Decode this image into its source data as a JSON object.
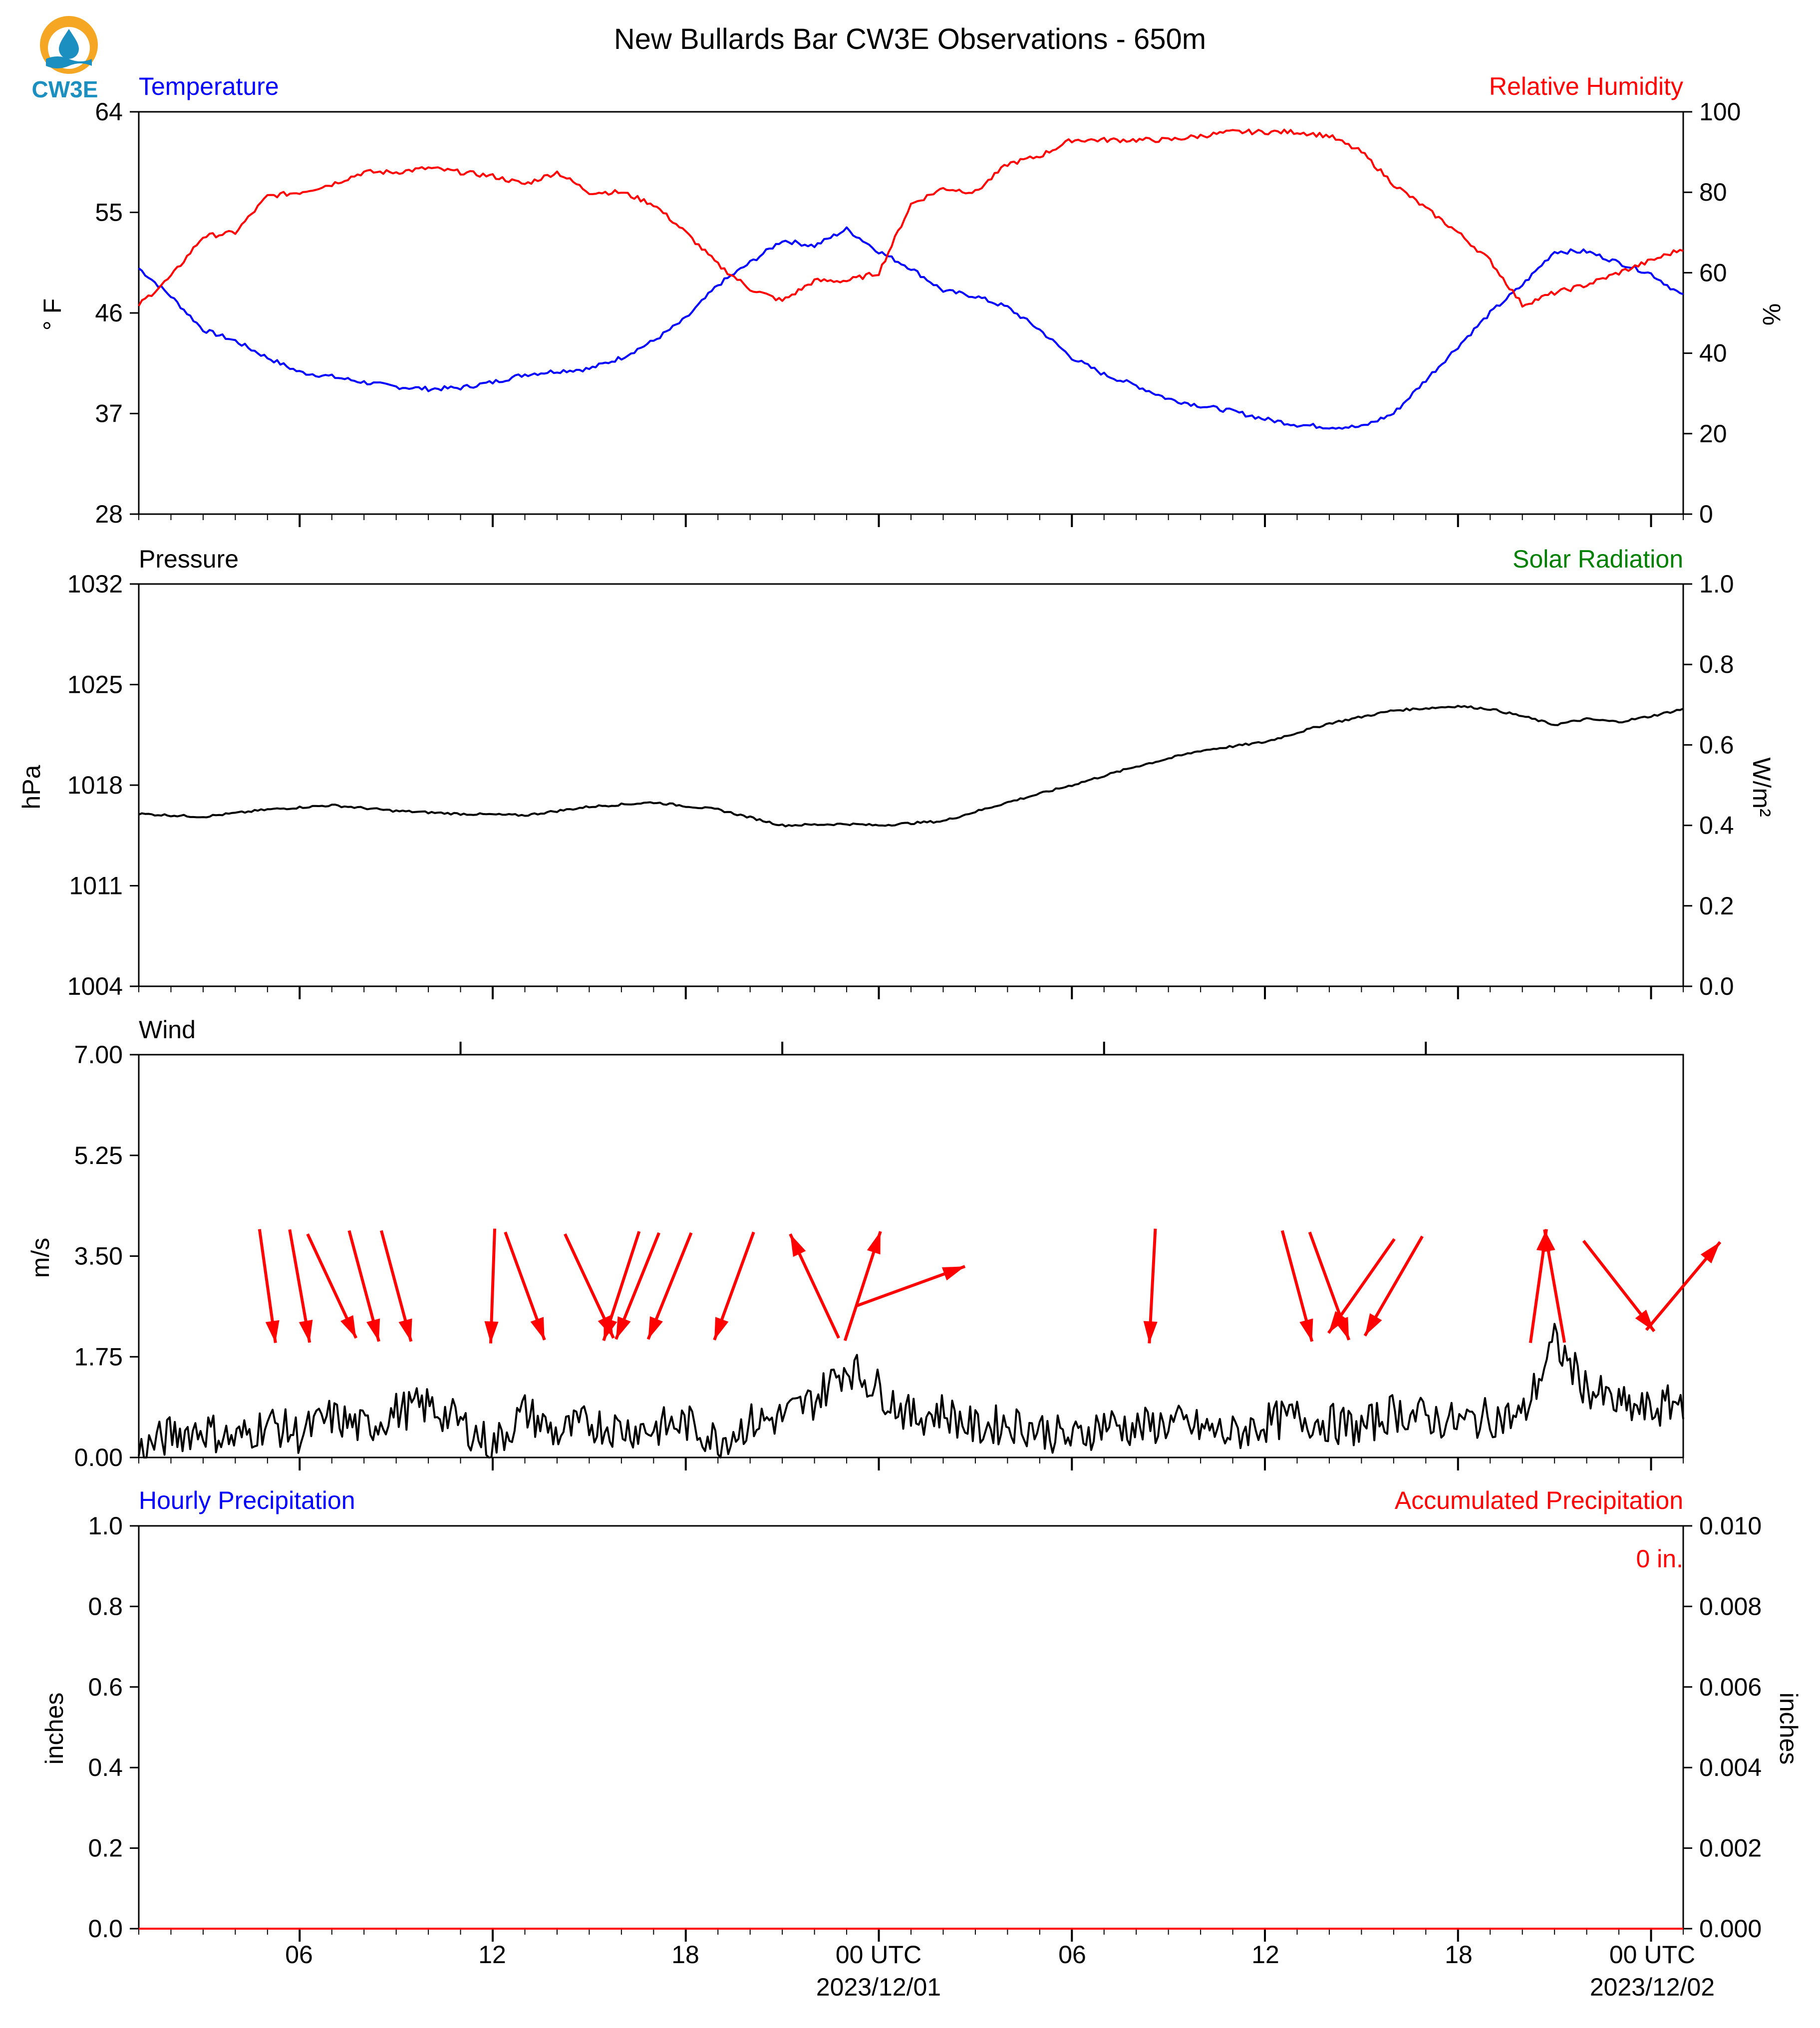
{
  "title": "New Bullards Bar CW3E Observations - 650m",
  "logo": {
    "text": "CW3E",
    "colors": {
      "ring": "#f5a623",
      "water": "#1b8fbf"
    }
  },
  "colors": {
    "temperature": "#0000ff",
    "humidity": "#ff0000",
    "pressure": "#000000",
    "solar": "#008000",
    "wind": "#000000",
    "arrows": "#ff0000",
    "hourly_precip": "#0000ff",
    "accum_precip": "#ff0000"
  },
  "x_axis": {
    "ticks_major": [
      "06",
      "12",
      "18",
      "00 UTC",
      "06",
      "12",
      "18",
      "00 UTC"
    ],
    "date_labels": [
      "2023/12/01",
      "2023/12/02"
    ],
    "range_hours": [
      -23.0,
      25.0
    ]
  },
  "panels": {
    "temp_rh": {
      "left_label": "Temperature",
      "right_label": "Relative Humidity",
      "left_unit": "° F",
      "right_unit": "%"
    },
    "pressure": {
      "left_label": "Pressure",
      "right_label": "Solar Radiation",
      "left_unit": "hPa",
      "right_unit": "W/m²"
    },
    "wind": {
      "left_label": "Wind",
      "left_unit": "m/s"
    },
    "precip": {
      "left_label": "Hourly Precipitation",
      "right_label": "Accumulated Precipitation",
      "left_unit": "inches",
      "right_unit": "inches",
      "total_label": "0 in."
    }
  },
  "chart_data": [
    {
      "type": "line",
      "title": "Temperature / Relative Humidity",
      "x_unit": "hours relative to 2023/12/01 00 UTC",
      "ylim_left": [
        28,
        64
      ],
      "yticks_left": [
        28,
        37,
        46,
        55,
        64
      ],
      "ylim_right": [
        0,
        100
      ],
      "yticks_right": [
        0,
        20,
        40,
        60,
        80,
        100
      ],
      "series": [
        {
          "name": "Temperature",
          "axis": "left",
          "x": [
            -23,
            -22,
            -21,
            -20,
            -19,
            -18,
            -17,
            -16,
            -15,
            -14,
            -13,
            -12,
            -11,
            -10,
            -9,
            -8,
            -7,
            -6,
            -5,
            -4,
            -3,
            -2,
            -1,
            0,
            1,
            2,
            3,
            4,
            5,
            6,
            7,
            8,
            9,
            10,
            11,
            12,
            13,
            14,
            15,
            16,
            17,
            18,
            19,
            20,
            21,
            22,
            23,
            24,
            25
          ],
          "y": [
            50.0,
            47.5,
            44.5,
            43.5,
            42.0,
            40.7,
            40.3,
            39.8,
            39.4,
            39.2,
            39.3,
            39.8,
            40.5,
            40.8,
            41.0,
            42.0,
            43.5,
            45.5,
            48.5,
            50.5,
            52.5,
            52.0,
            53.5,
            51.5,
            50.0,
            48.0,
            47.5,
            46.5,
            44.5,
            42.0,
            40.5,
            39.5,
            38.3,
            37.7,
            37.2,
            36.5,
            36.0,
            35.8,
            35.8,
            37.0,
            40.0,
            43.0,
            46.0,
            48.5,
            51.5,
            51.5,
            50.5,
            49.5,
            47.5
          ]
        },
        {
          "name": "Relative Humidity",
          "axis": "right",
          "x": [
            -23,
            -22,
            -21,
            -20,
            -19,
            -18,
            -17,
            -16,
            -15,
            -14,
            -13,
            -12,
            -11,
            -10,
            -9,
            -8,
            -7,
            -6,
            -5,
            -4,
            -3,
            -2,
            -1,
            0,
            1,
            2,
            3,
            4,
            5,
            6,
            7,
            8,
            9,
            10,
            11,
            12,
            13,
            14,
            15,
            16,
            17,
            18,
            19,
            20,
            21,
            22,
            23,
            24,
            25
          ],
          "y": [
            52,
            59,
            69,
            70,
            79,
            80,
            82,
            85,
            85,
            86,
            85,
            84,
            82,
            85,
            80,
            80,
            77,
            70,
            62,
            56,
            53,
            58,
            58,
            60,
            77,
            81,
            80,
            87,
            89,
            93,
            93,
            93,
            93,
            94,
            95,
            95,
            95,
            94,
            90,
            82,
            76,
            70,
            63,
            52,
            55,
            57,
            60,
            63,
            66
          ]
        }
      ]
    },
    {
      "type": "line",
      "title": "Pressure / Solar Radiation",
      "x_unit": "hours relative to 2023/12/01 00 UTC",
      "ylim_left": [
        1004,
        1032
      ],
      "yticks_left": [
        1004,
        1011,
        1018,
        1025,
        1032
      ],
      "ylim_right": [
        0.0,
        1.0
      ],
      "yticks_right": [
        0.0,
        0.2,
        0.4,
        0.6,
        0.8,
        1.0
      ],
      "series": [
        {
          "name": "Pressure",
          "axis": "left",
          "x": [
            -23,
            -21,
            -19,
            -17,
            -15,
            -13,
            -11,
            -9,
            -7,
            -5,
            -3,
            -1,
            0,
            2,
            4,
            6,
            8,
            10,
            12,
            14,
            16,
            18,
            19,
            20,
            21,
            22,
            23,
            24,
            25
          ],
          "y": [
            1016.0,
            1015.8,
            1016.3,
            1016.6,
            1016.2,
            1016.0,
            1015.9,
            1016.5,
            1016.8,
            1016.3,
            1015.2,
            1015.3,
            1015.2,
            1015.5,
            1016.8,
            1018.0,
            1019.3,
            1020.4,
            1021.0,
            1022.3,
            1023.2,
            1023.5,
            1023.3,
            1022.8,
            1022.2,
            1022.6,
            1022.4,
            1022.8,
            1023.3
          ]
        }
      ]
    },
    {
      "type": "line",
      "title": "Wind",
      "x_unit": "hours relative to 2023/12/01 00 UTC",
      "ylim": [
        0.0,
        7.0
      ],
      "yticks": [
        0.0,
        1.75,
        3.5,
        5.25,
        7.0
      ],
      "series": [
        {
          "name": "Wind speed",
          "x": [
            -23,
            -22,
            -21,
            -20,
            -19,
            -18,
            -17,
            -16,
            -15,
            -14,
            -13,
            -12,
            -11,
            -10,
            -9,
            -8,
            -7,
            -6,
            -5,
            -4,
            -3,
            -2,
            -1,
            0,
            1,
            2,
            3,
            4,
            5,
            6,
            7,
            8,
            9,
            10,
            11,
            12,
            13,
            14,
            15,
            16,
            17,
            18,
            19,
            20,
            21,
            22,
            23,
            24,
            25
          ],
          "y": [
            0.1,
            0.4,
            0.5,
            0.3,
            0.6,
            0.4,
            0.7,
            0.5,
            0.8,
            0.9,
            0.6,
            0.2,
            0.8,
            0.4,
            0.6,
            0.5,
            0.5,
            0.6,
            0.3,
            0.6,
            0.7,
            1.0,
            1.6,
            1.2,
            0.7,
            0.8,
            0.5,
            0.6,
            0.5,
            0.3,
            0.6,
            0.5,
            0.6,
            0.5,
            0.4,
            0.6,
            0.7,
            0.6,
            0.5,
            0.8,
            0.7,
            0.6,
            0.7,
            0.7,
            2.0,
            1.2,
            0.9,
            0.8,
            1.0
          ]
        }
      ],
      "arrows": [
        {
          "x": -19.0,
          "dir_deg": 352
        },
        {
          "x": -18.0,
          "dir_deg": 350
        },
        {
          "x": -17.0,
          "dir_deg": 335
        },
        {
          "x": -16.0,
          "dir_deg": 345
        },
        {
          "x": -15.0,
          "dir_deg": 345
        },
        {
          "x": -12.0,
          "dir_deg": 2
        },
        {
          "x": -11.0,
          "dir_deg": 340
        },
        {
          "x": -9.0,
          "dir_deg": 335
        },
        {
          "x": -8.0,
          "dir_deg": 18
        },
        {
          "x": -7.5,
          "dir_deg": 22
        },
        {
          "x": -6.5,
          "dir_deg": 22
        },
        {
          "x": -4.5,
          "dir_deg": 20
        },
        {
          "x": -2.0,
          "dir_deg": 155
        },
        {
          "x": -0.5,
          "dir_deg": 198
        },
        {
          "x": 1.0,
          "dir_deg": 250
        },
        {
          "x": 8.5,
          "dir_deg": 3
        },
        {
          "x": 13.0,
          "dir_deg": 345
        },
        {
          "x": 14.0,
          "dir_deg": 340
        },
        {
          "x": 15.0,
          "dir_deg": 35
        },
        {
          "x": 16.0,
          "dir_deg": 30
        },
        {
          "x": 20.5,
          "dir_deg": 188
        },
        {
          "x": 21.0,
          "dir_deg": 170
        },
        {
          "x": 23.0,
          "dir_deg": 322
        },
        {
          "x": 25.0,
          "dir_deg": 220
        }
      ]
    },
    {
      "type": "line",
      "title": "Precipitation",
      "x_unit": "hours relative to 2023/12/01 00 UTC",
      "ylim_left": [
        0.0,
        1.0
      ],
      "yticks_left": [
        0.0,
        0.2,
        0.4,
        0.6,
        0.8,
        1.0
      ],
      "ylim_right": [
        0.0,
        0.01
      ],
      "yticks_right": [
        0.0,
        0.002,
        0.004,
        0.006,
        0.008,
        0.01
      ],
      "series": [
        {
          "name": "Hourly Precipitation",
          "axis": "left",
          "x": [
            -23,
            25
          ],
          "y": [
            0.0,
            0.0
          ]
        },
        {
          "name": "Accumulated Precipitation",
          "axis": "right",
          "x": [
            -23,
            25
          ],
          "y": [
            0.0,
            0.0
          ]
        }
      ]
    }
  ]
}
